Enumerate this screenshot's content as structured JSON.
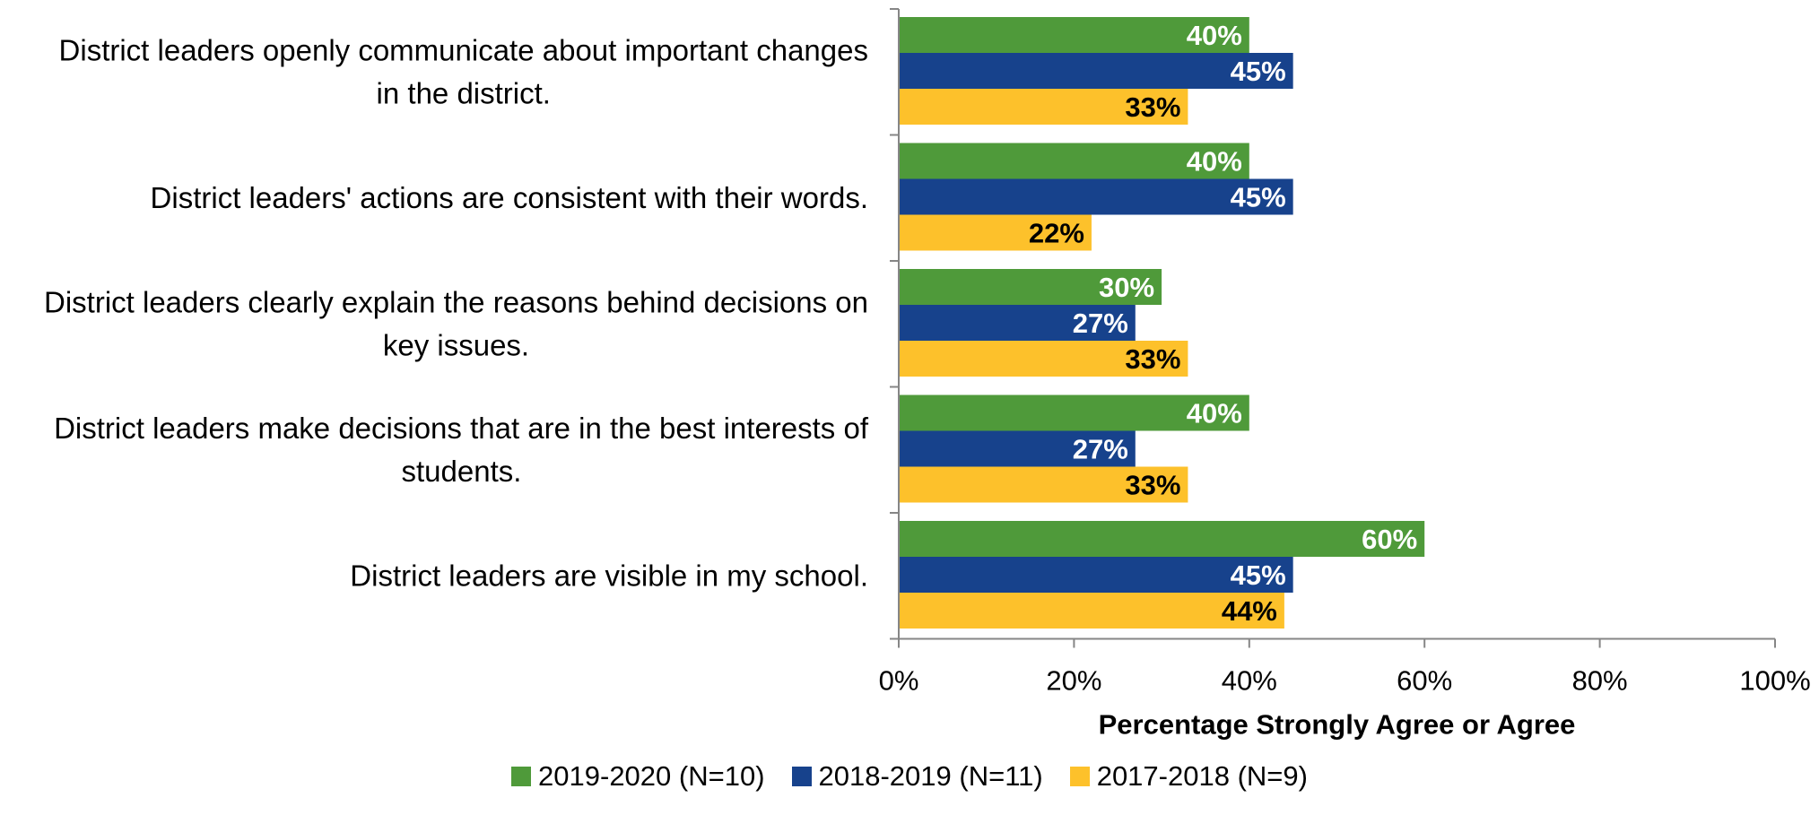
{
  "chart_data": {
    "type": "bar",
    "orientation": "horizontal",
    "categories": [
      [
        "District leaders openly communicate about important changes",
        "in the district."
      ],
      [
        "District leaders' actions are consistent with their words."
      ],
      [
        "District leaders clearly explain the reasons behind decisions on",
        "key issues."
      ],
      [
        "District leaders make decisions that are in the best interests of",
        "students."
      ],
      [
        "District leaders are visible in my school."
      ]
    ],
    "series": [
      {
        "name": "2019-2020 (N=10)",
        "color": "#4f9a3a",
        "label_color": "#ffffff",
        "values": [
          40,
          40,
          30,
          40,
          60
        ],
        "labels": [
          "40%",
          "40%",
          "30%",
          "40%",
          "60%"
        ]
      },
      {
        "name": "2018-2019 (N=11)",
        "color": "#17428c",
        "label_color": "#ffffff",
        "values": [
          45,
          45,
          27,
          27,
          45
        ],
        "labels": [
          "45%",
          "45%",
          "27%",
          "27%",
          "45%"
        ]
      },
      {
        "name": "2017-2018 (N=9)",
        "color": "#fdc12b",
        "label_color": "#000000",
        "values": [
          33,
          22,
          33,
          33,
          44
        ],
        "labels": [
          "33%",
          "22%",
          "33%",
          "33%",
          "44%"
        ]
      }
    ],
    "xlim": [
      0,
      100
    ],
    "xticks": [
      "0%",
      "20%",
      "40%",
      "60%",
      "80%",
      "100%"
    ],
    "xlabel": "Percentage Strongly Agree or Agree",
    "ylabel": "",
    "title": "",
    "legend_position": "bottom",
    "grid": false
  }
}
